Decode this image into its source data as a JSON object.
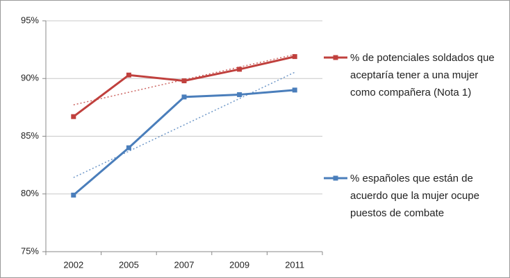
{
  "chart_data": {
    "type": "line",
    "categories": [
      "2002",
      "2005",
      "2007",
      "2009",
      "2011"
    ],
    "series": [
      {
        "name": "% de potenciales soldados que aceptaría tener a una mujer como compañera (Nota 1)",
        "color": "#c0403d",
        "values": [
          86.7,
          90.3,
          89.8,
          90.8,
          91.9
        ]
      },
      {
        "name": "% españoles que están de acuerdo que la mujer ocupe puestos de combate",
        "color": "#4a7ebb",
        "values": [
          79.9,
          84.0,
          88.4,
          88.6,
          89.0
        ]
      }
    ],
    "ylim": [
      75,
      95
    ],
    "yticks": [
      {
        "value": 75,
        "label": "75%"
      },
      {
        "value": 80,
        "label": "80%"
      },
      {
        "value": 85,
        "label": "85%"
      },
      {
        "value": 90,
        "label": "90%"
      },
      {
        "value": 95,
        "label": "95%"
      }
    ],
    "grid": true,
    "trendline": true,
    "legend": "right"
  }
}
